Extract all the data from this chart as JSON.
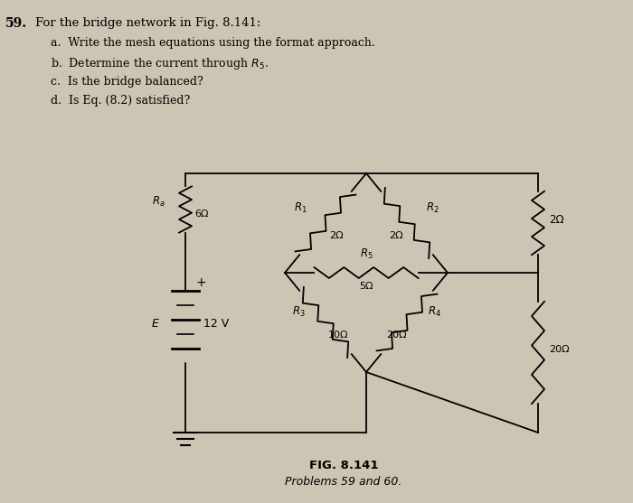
{
  "background_color": "#cdc5b4",
  "fig_label": "FIG. 8.141",
  "fig_sublabel": "Problems 59 and 60.",
  "Ra_label": "R_a",
  "Ra_value": "6Ω",
  "R1_label": "R_1",
  "R1_value": "2Ω",
  "R2_label": "R_2",
  "R2_value": "2Ω",
  "R3_label": "R_3",
  "R3_value": "10Ω",
  "R4_label": "R_4",
  "R4_value": "20Ω",
  "R5_label": "R_5",
  "R5_value": "5Ω",
  "E_label": "E",
  "E_value": "12 V",
  "R_top_right_value": "2Ω",
  "R_bot_right_value": "20Ω",
  "text_59": "59.",
  "text_title": "For the bridge network in Fig. 8.141:",
  "text_a": "a.  Write the mesh equations using the format approach.",
  "text_b": "b.  Determine the current through $R_5$.",
  "text_c": "c.  Is the bridge balanced?",
  "text_d": "d.  Is Eq. (8.2) satisfied?"
}
